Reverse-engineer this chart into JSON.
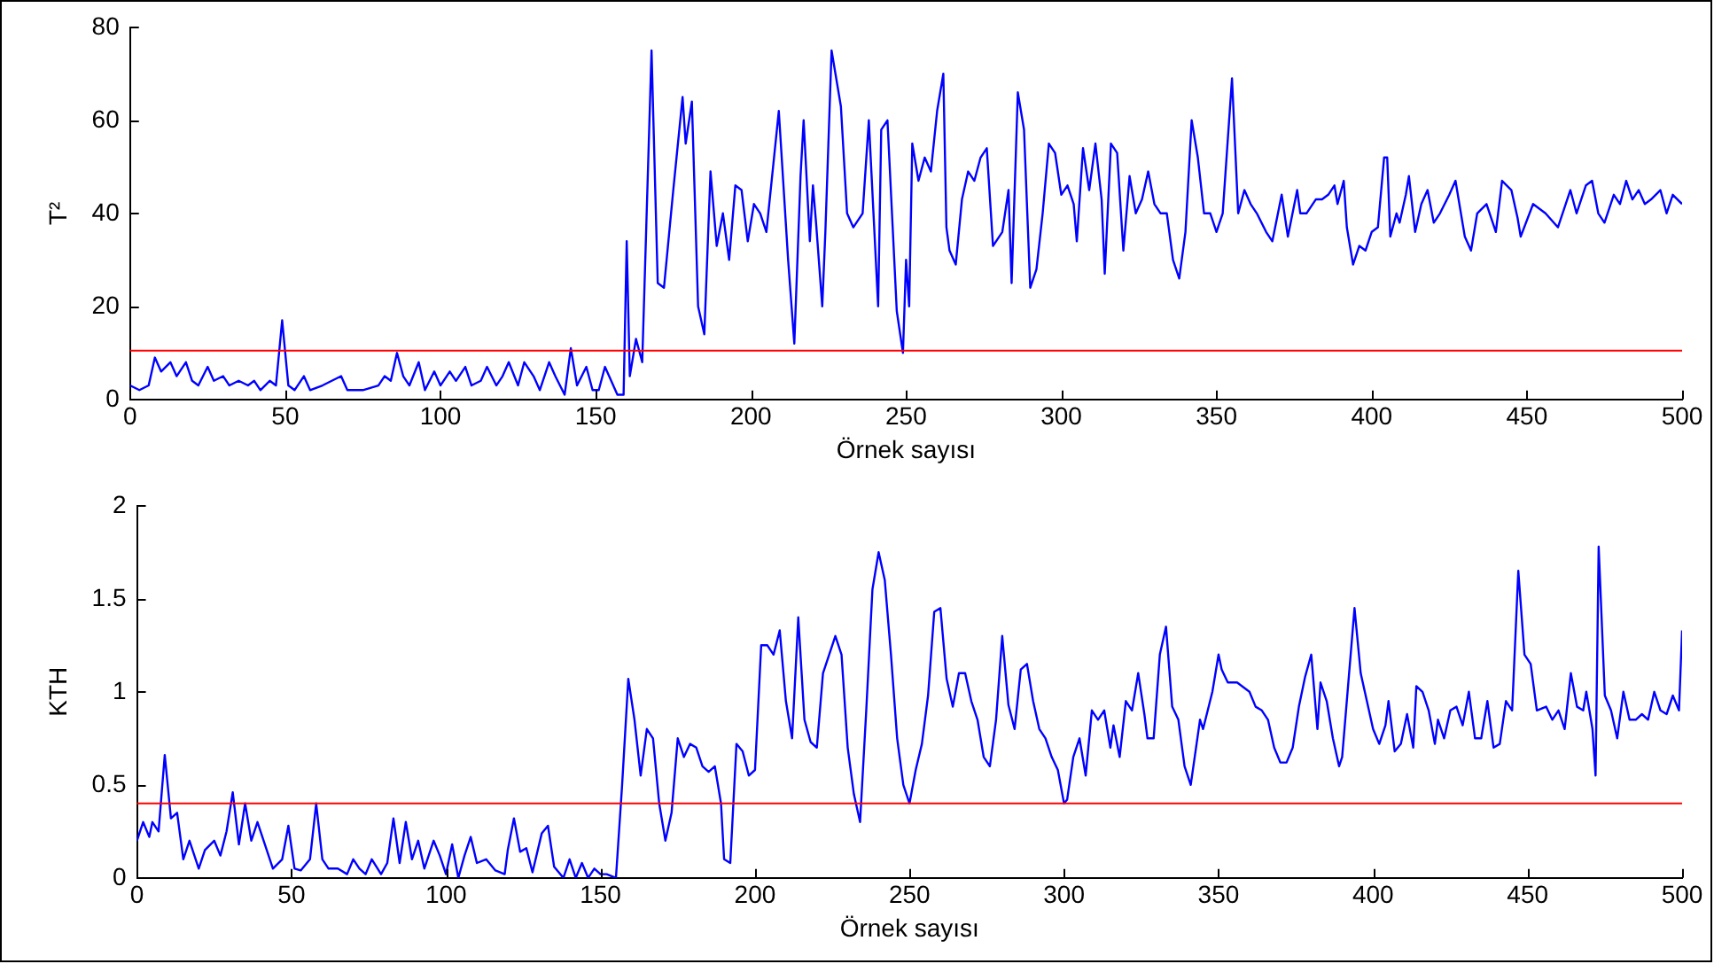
{
  "chart_data": [
    {
      "type": "line",
      "xlabel": "Örnek sayısı",
      "ylabel": "T²",
      "xlim": [
        0,
        500
      ],
      "xticks": [
        0,
        50,
        100,
        150,
        200,
        250,
        300,
        350,
        400,
        450,
        500
      ],
      "ylim": [
        0,
        80
      ],
      "yticks": [
        0,
        20,
        40,
        60,
        80
      ],
      "grid": false,
      "legend": false,
      "marker": "none",
      "ref_lines": [
        {
          "axis": "y",
          "value": 10.5,
          "color": "#ff0000"
        }
      ],
      "series": [
        {
          "color": "#0000ff",
          "x": [
            0,
            3,
            6,
            8,
            10,
            13,
            15,
            18,
            20,
            22,
            25,
            27,
            30,
            32,
            35,
            38,
            40,
            42,
            45,
            47,
            49,
            51,
            53,
            56,
            58,
            62,
            65,
            68,
            70,
            75,
            80,
            82,
            84,
            86,
            88,
            90,
            93,
            95,
            98,
            100,
            103,
            105,
            108,
            110,
            113,
            115,
            118,
            120,
            122,
            125,
            127,
            130,
            132,
            135,
            137,
            140,
            142,
            144,
            147,
            149,
            151,
            153,
            155,
            157,
            159,
            160,
            161,
            163,
            165,
            168,
            170,
            172,
            175,
            178,
            179,
            181,
            183,
            185,
            187,
            189,
            191,
            193,
            195,
            197,
            199,
            201,
            203,
            205,
            209,
            212,
            214,
            216,
            217,
            219,
            220,
            221,
            223,
            224,
            226,
            229,
            231,
            233,
            236,
            238,
            241,
            242,
            244,
            247,
            249,
            250,
            251,
            252,
            254,
            256,
            258,
            260,
            262,
            263,
            264,
            266,
            268,
            270,
            272,
            274,
            276,
            278,
            279,
            281,
            283,
            284,
            286,
            288,
            290,
            292,
            294,
            296,
            298,
            300,
            302,
            304,
            305,
            307,
            309,
            311,
            313,
            314,
            316,
            318,
            320,
            322,
            324,
            326,
            328,
            330,
            332,
            334,
            336,
            338,
            340,
            342,
            344,
            346,
            348,
            350,
            352,
            355,
            357,
            359,
            361,
            363,
            366,
            368,
            371,
            373,
            376,
            377,
            379,
            382,
            384,
            386,
            388,
            389,
            391,
            392,
            394,
            396,
            398,
            400,
            402,
            404,
            405,
            406,
            408,
            409,
            411,
            412,
            414,
            416,
            418,
            420,
            422,
            425,
            427,
            430,
            432,
            434,
            437,
            440,
            442,
            445,
            447,
            448,
            452,
            456,
            460,
            462,
            464,
            466,
            469,
            471,
            473,
            475,
            478,
            480,
            482,
            484,
            486,
            488,
            490,
            493,
            495,
            497,
            500
          ],
          "values": [
            3,
            2,
            3,
            9,
            6,
            8,
            5,
            8,
            4,
            3,
            7,
            4,
            5,
            3,
            4,
            3,
            4,
            2,
            4,
            3,
            17,
            3,
            2,
            5,
            2,
            3,
            4,
            5,
            2,
            2,
            3,
            5,
            4,
            10,
            5,
            3,
            8,
            2,
            6,
            3,
            6,
            4,
            7,
            3,
            4,
            7,
            3,
            5,
            8,
            3,
            8,
            5,
            2,
            8,
            5,
            1,
            11,
            3,
            7,
            2,
            2,
            7,
            4,
            1,
            1,
            34,
            5,
            13,
            8,
            75,
            25,
            24,
            45,
            65,
            55,
            64,
            20,
            14,
            49,
            33,
            40,
            30,
            46,
            45,
            34,
            42,
            40,
            36,
            62,
            30,
            12,
            48,
            60,
            34,
            46,
            38,
            20,
            36,
            75,
            63,
            40,
            37,
            40,
            60,
            20,
            58,
            60,
            19,
            10,
            30,
            20,
            55,
            47,
            52,
            49,
            62,
            70,
            37,
            32,
            29,
            43,
            49,
            47,
            52,
            54,
            33,
            34,
            36,
            45,
            25,
            66,
            58,
            24,
            28,
            40,
            55,
            53,
            44,
            46,
            42,
            34,
            54,
            45,
            55,
            43,
            27,
            55,
            53,
            32,
            48,
            40,
            43,
            49,
            42,
            40,
            40,
            30,
            26,
            36,
            60,
            52,
            40,
            40,
            36,
            40,
            69,
            40,
            45,
            42,
            40,
            36,
            34,
            44,
            35,
            45,
            40,
            40,
            43,
            43,
            44,
            46,
            42,
            47,
            37,
            29,
            33,
            32,
            36,
            37,
            52,
            52,
            35,
            40,
            38,
            44,
            48,
            36,
            42,
            45,
            38,
            40,
            44,
            47,
            35,
            32,
            40,
            42,
            36,
            47,
            45,
            39,
            35,
            42,
            40,
            37,
            41,
            45,
            40,
            46,
            47,
            40,
            38,
            44,
            42,
            47,
            43,
            45,
            42,
            43,
            45,
            40,
            44,
            42
          ]
        }
      ]
    },
    {
      "type": "line",
      "xlabel": "Örnek sayısı",
      "ylabel": "KTH",
      "xlim": [
        0,
        500
      ],
      "xticks": [
        0,
        50,
        100,
        150,
        200,
        250,
        300,
        350,
        400,
        450,
        500
      ],
      "ylim": [
        0,
        2
      ],
      "yticks": [
        0,
        {
          "value": 0.5,
          "label": "0.5"
        },
        1,
        {
          "value": 1.5,
          "label": "1.5"
        },
        2
      ],
      "grid": false,
      "legend": false,
      "marker": "none",
      "ref_lines": [
        {
          "axis": "y",
          "value": 0.4,
          "color": "#ff0000"
        }
      ],
      "series": [
        {
          "color": "#0000ff",
          "x": [
            0,
            2,
            4,
            5,
            7,
            9,
            11,
            13,
            15,
            17,
            20,
            22,
            25,
            27,
            29,
            31,
            33,
            35,
            37,
            39,
            42,
            44,
            47,
            49,
            51,
            53,
            56,
            58,
            60,
            62,
            65,
            68,
            70,
            72,
            74,
            76,
            79,
            81,
            83,
            85,
            87,
            89,
            91,
            93,
            96,
            98,
            100,
            102,
            104,
            106,
            108,
            110,
            113,
            116,
            119,
            120,
            122,
            124,
            126,
            128,
            131,
            133,
            135,
            138,
            140,
            142,
            144,
            146,
            148,
            150,
            152,
            155,
            157,
            159,
            161,
            163,
            165,
            167,
            169,
            171,
            173,
            175,
            177,
            179,
            181,
            183,
            185,
            187,
            189,
            190,
            192,
            194,
            196,
            198,
            200,
            202,
            204,
            206,
            208,
            210,
            212,
            214,
            216,
            218,
            220,
            222,
            224,
            226,
            228,
            230,
            232,
            234,
            236,
            238,
            240,
            242,
            244,
            246,
            248,
            250,
            252,
            254,
            256,
            258,
            260,
            262,
            264,
            266,
            268,
            270,
            272,
            274,
            276,
            278,
            280,
            282,
            284,
            286,
            288,
            290,
            292,
            294,
            296,
            298,
            300,
            301,
            303,
            305,
            307,
            309,
            311,
            313,
            315,
            316,
            318,
            320,
            322,
            324,
            326,
            327,
            329,
            331,
            333,
            335,
            337,
            339,
            341,
            344,
            345,
            348,
            350,
            351,
            353,
            356,
            360,
            362,
            364,
            366,
            368,
            370,
            372,
            374,
            376,
            378,
            380,
            382,
            383,
            385,
            387,
            389,
            390,
            392,
            394,
            396,
            398,
            400,
            402,
            404,
            405,
            407,
            409,
            411,
            413,
            414,
            416,
            418,
            420,
            421,
            423,
            425,
            427,
            429,
            431,
            433,
            435,
            437,
            439,
            441,
            443,
            445,
            447,
            449,
            451,
            453,
            456,
            458,
            460,
            462,
            464,
            466,
            468,
            469,
            471,
            472,
            473,
            475,
            477,
            479,
            481,
            483,
            485,
            487,
            489,
            491,
            493,
            495,
            497,
            499,
            500
          ],
          "values": [
            0.2,
            0.3,
            0.22,
            0.3,
            0.25,
            0.66,
            0.32,
            0.35,
            0.1,
            0.2,
            0.05,
            0.15,
            0.2,
            0.12,
            0.25,
            0.46,
            0.18,
            0.4,
            0.2,
            0.3,
            0.15,
            0.05,
            0.1,
            0.28,
            0.05,
            0.04,
            0.1,
            0.4,
            0.1,
            0.05,
            0.05,
            0.02,
            0.1,
            0.05,
            0.02,
            0.1,
            0.02,
            0.08,
            0.32,
            0.08,
            0.3,
            0.1,
            0.2,
            0.05,
            0.2,
            0.12,
            0.02,
            0.18,
            0,
            0.12,
            0.22,
            0.08,
            0.1,
            0.04,
            0.02,
            0.15,
            0.32,
            0.14,
            0.16,
            0.03,
            0.24,
            0.28,
            0.06,
            0,
            0.1,
            0,
            0.08,
            0,
            0.05,
            0.02,
            0.02,
            0,
            0.5,
            1.07,
            0.85,
            0.55,
            0.8,
            0.75,
            0.4,
            0.2,
            0.35,
            0.75,
            0.65,
            0.72,
            0.7,
            0.6,
            0.57,
            0.6,
            0.4,
            0.1,
            0.08,
            0.72,
            0.68,
            0.55,
            0.58,
            1.25,
            1.25,
            1.2,
            1.33,
            0.95,
            0.75,
            1.4,
            0.85,
            0.73,
            0.7,
            1.1,
            1.2,
            1.3,
            1.2,
            0.7,
            0.45,
            0.3,
            0.9,
            1.55,
            1.75,
            1.6,
            1.2,
            0.75,
            0.5,
            0.4,
            0.58,
            0.72,
            0.98,
            1.43,
            1.45,
            1.07,
            0.92,
            1.1,
            1.1,
            0.95,
            0.85,
            0.65,
            0.6,
            0.85,
            1.3,
            0.93,
            0.8,
            1.12,
            1.15,
            0.95,
            0.8,
            0.75,
            0.65,
            0.58,
            0.4,
            0.42,
            0.65,
            0.75,
            0.55,
            0.9,
            0.85,
            0.9,
            0.7,
            0.82,
            0.65,
            0.95,
            0.9,
            1.1,
            0.88,
            0.75,
            0.75,
            1.2,
            1.35,
            0.92,
            0.85,
            0.6,
            0.5,
            0.85,
            0.8,
            1,
            1.2,
            1.12,
            1.05,
            1.05,
            1,
            0.92,
            0.9,
            0.85,
            0.7,
            0.62,
            0.62,
            0.7,
            0.92,
            1.08,
            1.2,
            0.8,
            1.05,
            0.95,
            0.75,
            0.6,
            0.65,
            1.05,
            1.45,
            1.1,
            0.95,
            0.8,
            0.72,
            0.82,
            0.95,
            0.68,
            0.72,
            0.88,
            0.7,
            1.03,
            1,
            0.9,
            0.72,
            0.85,
            0.75,
            0.9,
            0.92,
            0.82,
            1,
            0.75,
            0.75,
            0.95,
            0.7,
            0.72,
            0.95,
            0.9,
            1.65,
            1.2,
            1.15,
            0.9,
            0.92,
            0.85,
            0.9,
            0.8,
            1.1,
            0.92,
            0.9,
            1,
            0.8,
            0.55,
            1.78,
            0.98,
            0.9,
            0.75,
            1,
            0.85,
            0.85,
            0.88,
            0.85,
            1,
            0.9,
            0.88,
            0.98,
            0.9,
            1.33
          ]
        }
      ]
    }
  ]
}
